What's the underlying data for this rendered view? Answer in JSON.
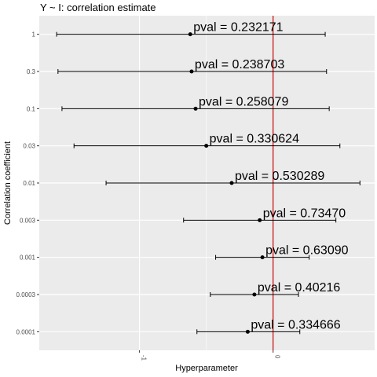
{
  "chart_data": {
    "type": "scatter",
    "title": "Y ~ I: correlation estimate",
    "xlabel": "Hyperparameter",
    "ylabel": "Correlation coefficient",
    "xlim": [
      -1.75,
      0.76
    ],
    "x_ticks": [
      -1,
      0
    ],
    "x_tick_labels": [
      "-1",
      "0"
    ],
    "reference_line": {
      "x": 0,
      "color": "#cc0000"
    },
    "categories": [
      "1",
      "0.3",
      "0.1",
      "0.03",
      "0.01",
      "0.003",
      "0.001",
      "0.0003",
      "0.0001"
    ],
    "points": [
      {
        "label": "1",
        "estimate": -0.62,
        "lower": -1.62,
        "upper": 0.39,
        "pval_text": "pval = 0.232171"
      },
      {
        "label": "0.3",
        "estimate": -0.61,
        "lower": -1.61,
        "upper": 0.4,
        "pval_text": "pval = 0.238703"
      },
      {
        "label": "0.1",
        "estimate": -0.58,
        "lower": -1.58,
        "upper": 0.42,
        "pval_text": "pval = 0.258079"
      },
      {
        "label": "0.03",
        "estimate": -0.5,
        "lower": -1.49,
        "upper": 0.5,
        "pval_text": "pval = 0.330624"
      },
      {
        "label": "0.01",
        "estimate": -0.31,
        "lower": -1.25,
        "upper": 0.65,
        "pval_text": "pval = 0.530289"
      },
      {
        "label": "0.003",
        "estimate": -0.1,
        "lower": -0.67,
        "upper": 0.47,
        "pval_text": "pval = 0.73470"
      },
      {
        "label": "0.001",
        "estimate": -0.08,
        "lower": -0.43,
        "upper": 0.27,
        "pval_text": "pval = 0.63090"
      },
      {
        "label": "0.0003",
        "estimate": -0.14,
        "lower": -0.47,
        "upper": 0.19,
        "pval_text": "pval = 0.40216"
      },
      {
        "label": "0.0001",
        "estimate": -0.19,
        "lower": -0.57,
        "upper": 0.2,
        "pval_text": "pval = 0.334666"
      }
    ],
    "colors": {
      "panel": "#ebebeb",
      "grid": "#ffffff",
      "points": "#000000"
    },
    "grid": true,
    "legend": "none"
  }
}
